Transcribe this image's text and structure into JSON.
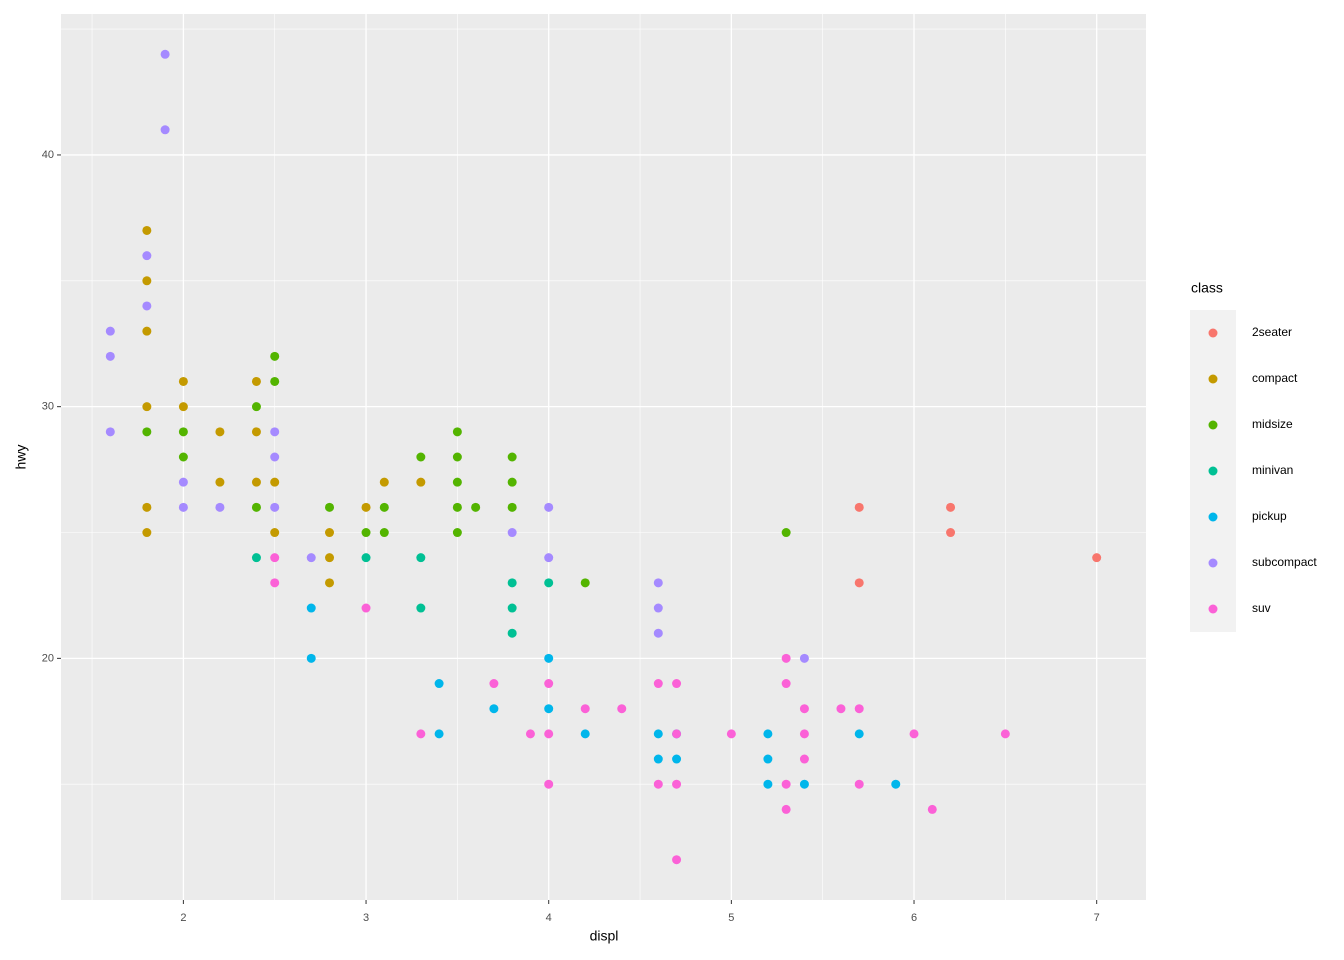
{
  "chart_data": {
    "type": "scatter",
    "x_label": "displ",
    "y_label": "hwy",
    "legend_title": "class",
    "xlim": [
      1.33,
      7.27
    ],
    "ylim": [
      10.4,
      45.6
    ],
    "xticks": [
      2,
      3,
      4,
      5,
      6,
      7
    ],
    "yticks": [
      20,
      30,
      40
    ],
    "xminor": [
      1.5,
      2.5,
      3.5,
      4.5,
      5.5,
      6.5
    ],
    "yminor": [
      15,
      25,
      35,
      45
    ],
    "grid": true,
    "legend": "right",
    "series": [
      {
        "name": "2seater",
        "color": "#F8766D",
        "x": [
          5.7,
          5.7,
          6.2,
          6.2,
          7
        ],
        "y": [
          26,
          23,
          26,
          25,
          24
        ]
      },
      {
        "name": "compact",
        "color": "#C49A00",
        "x": [
          1.8,
          1.8,
          1.8,
          1.8,
          1.8,
          1.8,
          2,
          2,
          2.2,
          2.2,
          2.4,
          2.4,
          2.4,
          2.5,
          2.5,
          2.8,
          2.8,
          2.8,
          3,
          3.1,
          3.3
        ],
        "y": [
          37,
          35,
          33,
          30,
          26,
          25,
          31,
          30,
          29,
          27,
          31,
          29,
          27,
          27,
          25,
          25,
          24,
          23,
          26,
          27,
          27
        ]
      },
      {
        "name": "midsize",
        "color": "#53B400",
        "x": [
          1.8,
          2,
          2,
          2.4,
          2.4,
          2.5,
          2.5,
          2.8,
          3,
          3.1,
          3.1,
          3.3,
          3.5,
          3.5,
          3.5,
          3.5,
          3.5,
          3.6,
          3.8,
          3.8,
          3.8,
          4.2,
          5.3
        ],
        "y": [
          29,
          29,
          28,
          30,
          26,
          32,
          31,
          26,
          25,
          26,
          25,
          28,
          29,
          28,
          27,
          26,
          25,
          26,
          28,
          27,
          26,
          23,
          25
        ]
      },
      {
        "name": "minivan",
        "color": "#00C094",
        "x": [
          2.4,
          3,
          3.3,
          3.3,
          3.8,
          3.8,
          3.8,
          4
        ],
        "y": [
          24,
          24,
          24,
          22,
          23,
          22,
          21,
          23
        ]
      },
      {
        "name": "pickup",
        "color": "#00B6EB",
        "x": [
          2.7,
          2.7,
          3.4,
          3.4,
          3.7,
          4,
          4,
          4.2,
          4.6,
          4.6,
          4.7,
          4.7,
          5.2,
          5.2,
          5.2,
          5.4,
          5.7,
          5.9
        ],
        "y": [
          22,
          20,
          19,
          17,
          18,
          20,
          18,
          17,
          17,
          16,
          17,
          16,
          17,
          16,
          15,
          15,
          17,
          15
        ]
      },
      {
        "name": "subcompact",
        "color": "#A58AFF",
        "x": [
          1.6,
          1.6,
          1.6,
          1.8,
          1.8,
          1.9,
          1.9,
          2,
          2,
          2.2,
          2.5,
          2.5,
          2.5,
          2.7,
          3.8,
          4,
          4,
          4.6,
          4.6,
          4.6,
          5.4
        ],
        "y": [
          33,
          32,
          29,
          36,
          34,
          44,
          41,
          27,
          26,
          26,
          29,
          28,
          26,
          24,
          25,
          26,
          24,
          23,
          22,
          21,
          20
        ]
      },
      {
        "name": "suv",
        "color": "#FB61D7",
        "x": [
          2.5,
          2.5,
          3,
          3.3,
          3.7,
          3.9,
          4,
          4,
          4,
          4.2,
          4.4,
          4.6,
          4.6,
          4.7,
          4.7,
          4.7,
          4.7,
          5,
          5.3,
          5.3,
          5.3,
          5.3,
          5.4,
          5.4,
          5.4,
          5.6,
          5.7,
          5.7,
          6,
          6.1,
          6.5
        ],
        "y": [
          24,
          23,
          22,
          17,
          19,
          17,
          19,
          17,
          15,
          18,
          18,
          19,
          15,
          19,
          17,
          15,
          12,
          17,
          20,
          19,
          15,
          14,
          18,
          17,
          16,
          18,
          18,
          15,
          17,
          14,
          17
        ]
      }
    ]
  }
}
